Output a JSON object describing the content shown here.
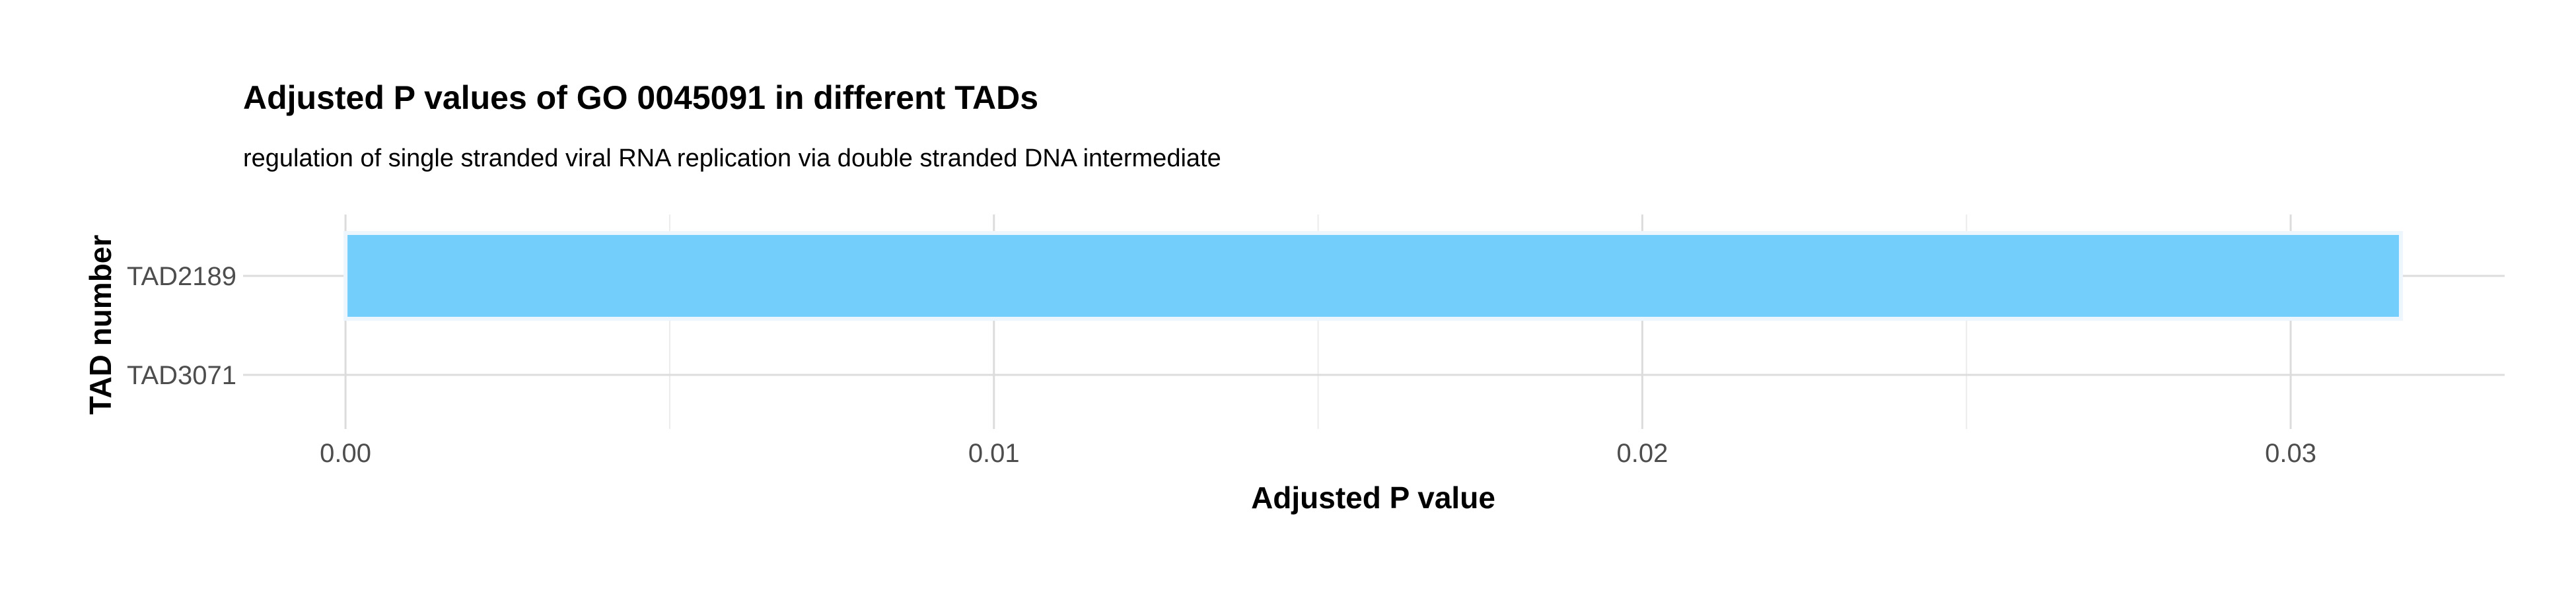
{
  "chart_data": {
    "type": "bar",
    "orientation": "horizontal",
    "title": "Adjusted P values of GO 0045091 in different TADs",
    "subtitle": "regulation of single stranded viral RNA replication via double stranded DNA intermediate",
    "xlabel": "Adjusted P value",
    "ylabel": "TAD number",
    "categories": [
      "TAD2189",
      "TAD3071"
    ],
    "values": [
      0.0317,
      0
    ],
    "xlim": [
      -0.00158,
      0.0333
    ],
    "x_ticks": [
      0.0,
      0.01,
      0.02,
      0.03
    ],
    "x_tick_labels": [
      "0.00",
      "0.01",
      "0.02",
      "0.03"
    ],
    "grid": true,
    "bar_color": "#74CEFB",
    "bar_outline_color": "#EEF6FD"
  }
}
